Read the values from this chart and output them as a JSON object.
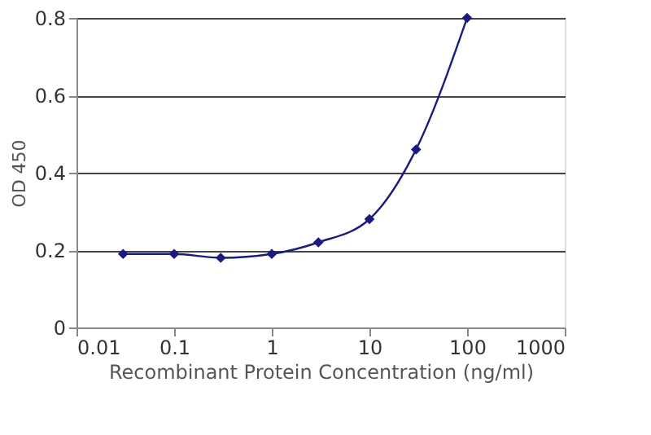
{
  "chart_data": {
    "type": "line",
    "xlabel": "Recombinant Protein Concentration (ng/ml)",
    "ylabel": "OD 450",
    "x": [
      0.03,
      0.1,
      0.3,
      1,
      3,
      10,
      30,
      100
    ],
    "series": [
      {
        "color": "#1a1a80",
        "values": [
          0.19,
          0.19,
          0.18,
          0.19,
          0.22,
          0.28,
          0.46,
          0.8
        ]
      }
    ],
    "log": "x",
    "xlim": [
      0.01,
      1000
    ],
    "xticks": [
      0.01,
      0.1,
      1,
      10,
      100,
      1000
    ],
    "ylim": [
      0,
      0.8
    ],
    "yticks": [
      0,
      0.2,
      0.4,
      0.6,
      0.8
    ],
    "grid": "y",
    "marker": "diamond",
    "line_style": "solid"
  }
}
